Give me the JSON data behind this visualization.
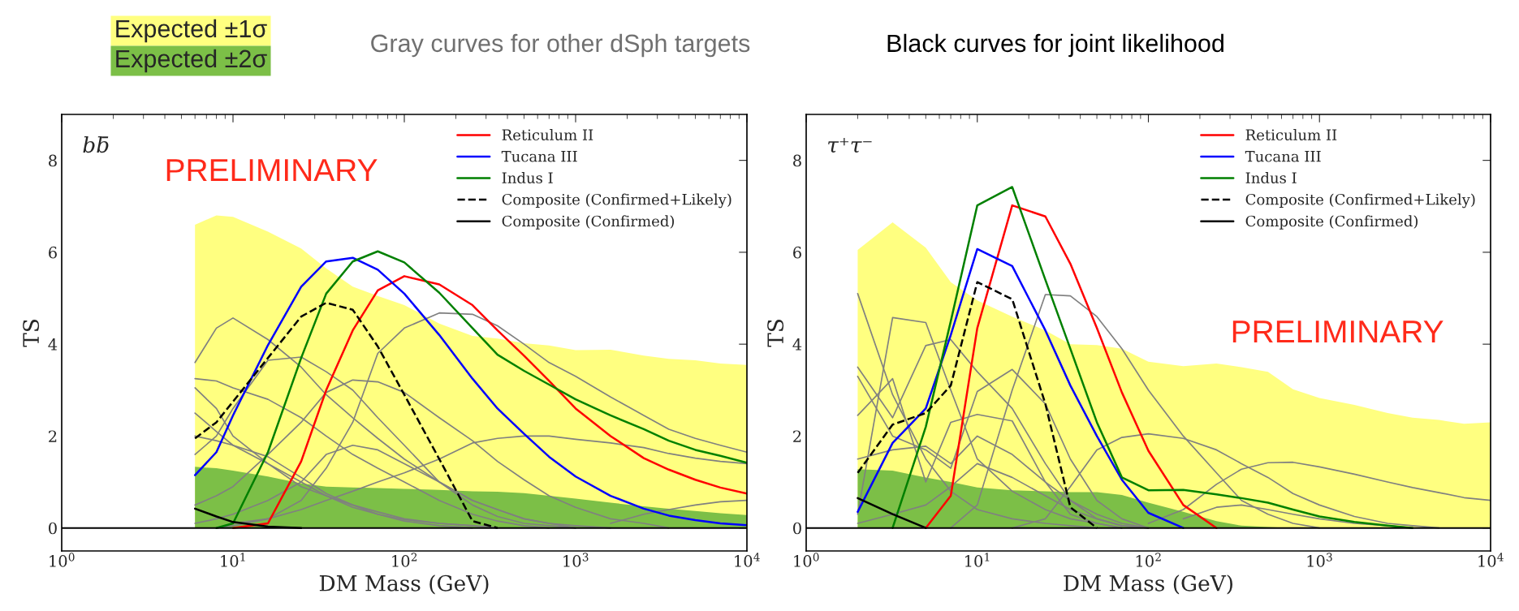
{
  "chart_data": [
    {
      "type": "line",
      "title": "bb̄",
      "xlabel": "DM Mass (GeV)",
      "ylabel": "TS",
      "log": "x",
      "legend": "top right",
      "xlim": [
        1,
        10000
      ],
      "ylim": [
        -0.5,
        9
      ],
      "xticks": [
        {
          "value": 1,
          "label": "10$^{0}$"
        },
        {
          "value": 10,
          "label": "10$^{1}$"
        },
        {
          "value": 100,
          "label": "10$^{2}$"
        },
        {
          "value": 1000,
          "label": "10$^{3}$"
        },
        {
          "value": 10000,
          "label": "10$^{4}$"
        }
      ],
      "yticks": [
        0,
        2,
        4,
        6,
        8
      ],
      "ref_lines": [
        {
          "axis": "y",
          "value": 0,
          "color": "#000000"
        }
      ],
      "annotations": [
        "PRELIMINARY",
        "Gray curves for other dSph targets",
        "Black curves for joint likelihood"
      ],
      "x": [
        6,
        8,
        10,
        16,
        25,
        35,
        50,
        70,
        100,
        160,
        250,
        350,
        500,
        700,
        1000,
        1600,
        2500,
        3500,
        5000,
        7000,
        10000
      ],
      "series": [
        {
          "type": "area",
          "name": "Expected ±1σ",
          "color": "#ffff80",
          "values": [
            6.6,
            6.8,
            6.77,
            6.45,
            6.08,
            5.65,
            5.25,
            5.05,
            4.85,
            4.45,
            4.18,
            4.12,
            4.02,
            3.97,
            3.87,
            3.88,
            3.75,
            3.68,
            3.65,
            3.58,
            3.55
          ]
        },
        {
          "type": "area",
          "name": "Expected ±2σ",
          "color": "#7cbf47",
          "values": [
            1.33,
            1.3,
            1.25,
            1.12,
            0.97,
            0.9,
            0.88,
            0.87,
            0.85,
            0.83,
            0.8,
            0.79,
            0.76,
            0.7,
            0.64,
            0.55,
            0.47,
            0.42,
            0.37,
            0.32,
            0.28
          ]
        },
        {
          "color": "#808080",
          "values": [
            3.6,
            4.35,
            4.57,
            4.1,
            3.5,
            2.9,
            2.4,
            1.95,
            1.5,
            1.0,
            0.6,
            0.4,
            0.2,
            0.1,
            0.05,
            0,
            null,
            null,
            null,
            null,
            null
          ]
        },
        {
          "color": "#808080",
          "values": [
            null,
            0,
            0.05,
            0.2,
            0.6,
            1.3,
            2.3,
            3.8,
            4.35,
            4.68,
            4.65,
            4.4,
            4.0,
            3.6,
            3.3,
            2.85,
            2.45,
            2.15,
            1.95,
            1.8,
            1.65
          ]
        },
        {
          "color": "#808080",
          "values": [
            null,
            0,
            0.1,
            0.2,
            0.4,
            0.6,
            0.8,
            1.0,
            1.2,
            1.5,
            1.85,
            1.95,
            2.0,
            2.0,
            1.93,
            1.85,
            1.75,
            1.62,
            1.52,
            1.45,
            1.4
          ]
        },
        {
          "color": "#808080",
          "values": [
            3.25,
            3.2,
            3.05,
            2.8,
            2.4,
            2.0,
            1.6,
            1.3,
            1.0,
            0.6,
            0.3,
            0.15,
            0.05,
            0,
            null,
            null,
            null,
            null,
            null,
            null,
            null
          ]
        },
        {
          "color": "#808080",
          "values": [
            1.6,
            2.0,
            2.6,
            3.65,
            3.72,
            3.4,
            3.0,
            2.4,
            1.8,
            1.0,
            0.5,
            0.25,
            0.1,
            0.05,
            0,
            null,
            null,
            null,
            null,
            null,
            null
          ]
        },
        {
          "color": "#808080",
          "values": [
            0.5,
            0.7,
            0.9,
            1.6,
            2.3,
            2.95,
            3.22,
            3.18,
            2.95,
            2.4,
            1.9,
            1.45,
            1.05,
            0.7,
            0.45,
            0.2,
            0.1,
            0,
            null,
            null,
            null
          ]
        },
        {
          "color": "#808080",
          "values": [
            3.05,
            2.6,
            2.0,
            1.4,
            0.9,
            0.7,
            0.5,
            0.35,
            0.2,
            0.1,
            0.05,
            0,
            null,
            null,
            null,
            null,
            null,
            null,
            null,
            null,
            null
          ]
        },
        {
          "color": "#808080",
          "values": [
            2.5,
            2.1,
            1.8,
            1.4,
            1.0,
            0.7,
            0.45,
            0.3,
            0.18,
            0.1,
            0.05,
            0,
            null,
            null,
            null,
            null,
            null,
            null,
            null,
            null,
            null
          ]
        },
        {
          "color": "#808080",
          "values": [
            0.1,
            0.2,
            0.3,
            0.6,
            1.0,
            1.6,
            1.8,
            1.7,
            1.4,
            1.0,
            0.6,
            0.4,
            0.2,
            0.1,
            0,
            null,
            null,
            null,
            null,
            null,
            null
          ]
        },
        {
          "color": "#808080",
          "values": [
            null,
            null,
            null,
            null,
            null,
            null,
            null,
            null,
            null,
            null,
            null,
            null,
            null,
            null,
            null,
            0.1,
            0.3,
            0.4,
            0.5,
            0.57,
            0.6
          ]
        },
        {
          "color": "#808080",
          "values": [
            2.0,
            1.9,
            1.8,
            1.55,
            1.1,
            0.75,
            0.5,
            0.3,
            0.15,
            0.05,
            0,
            null,
            null,
            null,
            null,
            null,
            null,
            null,
            null,
            null,
            null
          ]
        },
        {
          "name": "Reticulum II",
          "color": "#ff0000",
          "values": [
            null,
            null,
            0,
            0.1,
            1.45,
            3.0,
            4.3,
            5.17,
            5.48,
            5.3,
            4.85,
            4.3,
            3.75,
            3.2,
            2.6,
            2.0,
            1.52,
            1.27,
            1.05,
            0.88,
            0.75
          ]
        },
        {
          "name": "Tucana III",
          "color": "#0000ff",
          "values": [
            1.15,
            1.65,
            2.45,
            3.98,
            5.25,
            5.8,
            5.88,
            5.62,
            5.1,
            4.2,
            3.25,
            2.6,
            2.05,
            1.55,
            1.12,
            0.7,
            0.42,
            0.27,
            0.17,
            0.1,
            0.06
          ]
        },
        {
          "name": "Indus I",
          "color": "#008000",
          "values": [
            null,
            0,
            0.1,
            1.65,
            3.7,
            5.1,
            5.8,
            6.02,
            5.78,
            5.12,
            4.35,
            3.77,
            3.42,
            3.12,
            2.8,
            2.45,
            2.15,
            1.9,
            1.7,
            1.57,
            1.42
          ]
        },
        {
          "name": "Composite (Confirmed+Likely)",
          "color": "#000000",
          "line_style": "dashed",
          "values": [
            1.95,
            2.3,
            2.75,
            3.7,
            4.6,
            4.9,
            4.75,
            3.95,
            2.9,
            1.5,
            0.15,
            0,
            null,
            null,
            null,
            null,
            null,
            null,
            null,
            null,
            null
          ]
        },
        {
          "name": "Composite (Confirmed)",
          "color": "#000000",
          "values": [
            0.42,
            0.25,
            0.13,
            0.03,
            0,
            null,
            null,
            null,
            null,
            null,
            null,
            null,
            null,
            null,
            null,
            null,
            null,
            null,
            null,
            null,
            null
          ]
        }
      ]
    },
    {
      "type": "line",
      "title": "τ⁺τ⁻",
      "xlabel": "DM Mass (GeV)",
      "ylabel": "TS",
      "log": "x",
      "legend": "top right",
      "xlim": [
        1,
        10000
      ],
      "ylim": [
        -0.5,
        9
      ],
      "xticks": [
        {
          "value": 1,
          "label": "10$^{0}$"
        },
        {
          "value": 10,
          "label": "10$^{1}$"
        },
        {
          "value": 100,
          "label": "10$^{2}$"
        },
        {
          "value": 1000,
          "label": "10$^{3}$"
        },
        {
          "value": 10000,
          "label": "10$^{4}$"
        }
      ],
      "yticks": [
        0,
        2,
        4,
        6,
        8
      ],
      "ref_lines": [
        {
          "axis": "y",
          "value": 0,
          "color": "#000000"
        }
      ],
      "annotations": [
        "PRELIMINARY"
      ],
      "x": [
        2,
        3.2,
        5,
        7,
        10,
        16,
        25,
        35,
        50,
        70,
        100,
        160,
        250,
        350,
        500,
        700,
        1000,
        1600,
        2500,
        3500,
        5000,
        7000,
        10000
      ],
      "series": [
        {
          "type": "area",
          "color": "#ffff80",
          "values": [
            6.05,
            6.65,
            6.1,
            5.35,
            4.95,
            4.6,
            4.3,
            4.0,
            3.98,
            3.9,
            3.62,
            3.52,
            3.58,
            3.5,
            3.4,
            3.02,
            2.83,
            2.68,
            2.5,
            2.4,
            2.35,
            2.27,
            2.3
          ]
        },
        {
          "type": "area",
          "color": "#7cbf47",
          "values": [
            1.28,
            1.25,
            1.1,
            1.0,
            0.88,
            0.82,
            0.8,
            0.78,
            0.78,
            0.72,
            0.55,
            0.35,
            0.15,
            0.05,
            0.02,
            0,
            0,
            0,
            0,
            0,
            0,
            0,
            0
          ]
        },
        {
          "color": "#808080",
          "values": [
            null,
            null,
            null,
            0,
            0.5,
            3.0,
            5.08,
            5.05,
            4.6,
            3.9,
            3.0,
            2.0,
            1.2,
            0.6,
            0.3,
            0.1,
            0,
            null,
            null,
            null,
            null,
            null,
            null
          ]
        },
        {
          "color": "#808080",
          "values": [
            null,
            null,
            null,
            null,
            null,
            0,
            0.2,
            0.9,
            1.7,
            1.97,
            2.05,
            1.95,
            1.7,
            1.4,
            1.1,
            0.75,
            0.5,
            0.25,
            0.1,
            0.05,
            0,
            null,
            null
          ]
        },
        {
          "color": "#808080",
          "values": [
            null,
            null,
            null,
            null,
            null,
            null,
            null,
            null,
            null,
            null,
            0.1,
            0.4,
            0.95,
            1.28,
            1.42,
            1.43,
            1.33,
            1.17,
            1.0,
            0.88,
            0.77,
            0.66,
            0.6
          ]
        },
        {
          "color": "#808080",
          "values": [
            5.1,
            2.9,
            1.5,
            0.8,
            0.4,
            0.2,
            0.1,
            0.05,
            0,
            null,
            null,
            null,
            null,
            null,
            null,
            null,
            null,
            null,
            null,
            null,
            null,
            null,
            null
          ]
        },
        {
          "color": "#808080",
          "values": [
            0.3,
            4.58,
            4.47,
            3.0,
            1.5,
            0.8,
            0.4,
            0.2,
            0.1,
            0,
            null,
            null,
            null,
            null,
            null,
            null,
            null,
            null,
            null,
            null,
            null,
            null,
            null
          ]
        },
        {
          "color": "#808080",
          "values": [
            3.5,
            2.4,
            3.97,
            4.1,
            3.4,
            2.6,
            1.4,
            0.6,
            0.2,
            0.05,
            0,
            null,
            null,
            null,
            null,
            null,
            null,
            null,
            null,
            null,
            null,
            null,
            null
          ]
        },
        {
          "color": "#808080",
          "values": [
            3.3,
            2.0,
            1.7,
            1.3,
            2.97,
            3.45,
            2.7,
            1.5,
            0.6,
            0.2,
            0,
            null,
            null,
            null,
            null,
            null,
            null,
            null,
            null,
            null,
            null,
            null,
            null
          ]
        },
        {
          "color": "#808080",
          "values": [
            2.45,
            3.25,
            1.0,
            2.3,
            2.47,
            2.33,
            1.0,
            0.3,
            0.1,
            0,
            null,
            null,
            null,
            null,
            null,
            null,
            null,
            null,
            null,
            null,
            null,
            null,
            null
          ]
        },
        {
          "color": "#808080",
          "values": [
            1.5,
            1.7,
            1.78,
            1.4,
            2.0,
            1.6,
            1.0,
            0.6,
            0.3,
            0.1,
            0,
            null,
            null,
            null,
            null,
            null,
            null,
            null,
            null,
            null,
            null,
            null,
            null
          ]
        },
        {
          "color": "#808080",
          "values": [
            0.1,
            0.3,
            0.5,
            0.9,
            1.4,
            1.1,
            0.7,
            0.4,
            0.2,
            0.05,
            0,
            null,
            null,
            null,
            null,
            null,
            null,
            null,
            null,
            null,
            null,
            null,
            null
          ]
        },
        {
          "color": "#808080",
          "values": [
            null,
            null,
            null,
            null,
            null,
            null,
            null,
            null,
            null,
            null,
            null,
            0.2,
            0.45,
            0.5,
            0.4,
            0.3,
            0.2,
            0.1,
            0.05,
            0,
            null,
            null,
            null
          ]
        },
        {
          "name": "Reticulum II",
          "color": "#ff0000",
          "values": [
            null,
            null,
            0,
            0.7,
            4.35,
            7.02,
            6.78,
            5.75,
            4.35,
            2.95,
            1.68,
            0.5,
            0,
            null,
            null,
            null,
            null,
            null,
            null,
            null,
            null,
            null,
            null
          ]
        },
        {
          "name": "Tucana III",
          "color": "#0000ff",
          "values": [
            0.35,
            1.85,
            2.6,
            4.2,
            6.07,
            5.7,
            4.3,
            3.1,
            2.0,
            1.05,
            0.33,
            0,
            null,
            null,
            null,
            null,
            null,
            null,
            null,
            null,
            null,
            null,
            null
          ]
        },
        {
          "name": "Indus I",
          "color": "#008000",
          "values": [
            null,
            0,
            2.2,
            4.5,
            7.02,
            7.42,
            5.4,
            3.9,
            2.3,
            1.1,
            0.82,
            0.83,
            0.73,
            0.65,
            0.55,
            0.4,
            0.25,
            0.13,
            0.05,
            0,
            null,
            null,
            null
          ]
        },
        {
          "name": "Composite (Confirmed+Likely)",
          "color": "#000000",
          "line_style": "dashed",
          "values": [
            1.2,
            2.25,
            2.5,
            3.1,
            5.35,
            4.98,
            2.7,
            0.45,
            0,
            null,
            null,
            null,
            null,
            null,
            null,
            null,
            null,
            null,
            null,
            null,
            null,
            null,
            null
          ]
        },
        {
          "name": "Composite (Confirmed)",
          "color": "#000000",
          "values": [
            0.65,
            0.3,
            0,
            null,
            null,
            null,
            null,
            null,
            null,
            null,
            null,
            null,
            null,
            null,
            null,
            null,
            null,
            null,
            null,
            null,
            null,
            null,
            null
          ]
        }
      ]
    }
  ]
}
